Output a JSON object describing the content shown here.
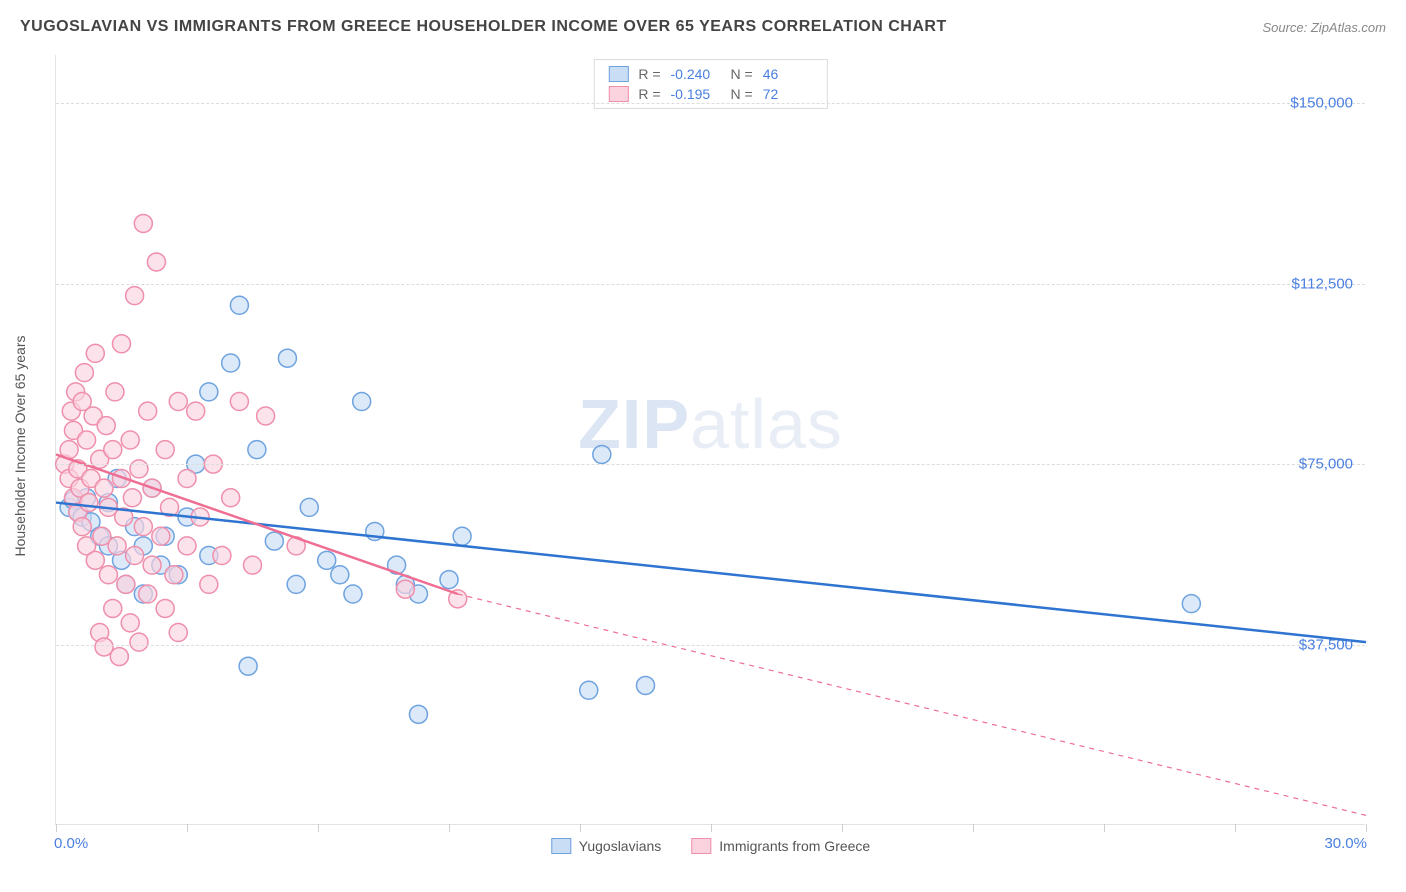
{
  "header": {
    "title": "YUGOSLAVIAN VS IMMIGRANTS FROM GREECE HOUSEHOLDER INCOME OVER 65 YEARS CORRELATION CHART",
    "source_prefix": "Source: ",
    "source_name": "ZipAtlas.com"
  },
  "watermark": {
    "zip": "ZIP",
    "atlas": "atlas"
  },
  "chart": {
    "type": "scatter",
    "y_axis_label": "Householder Income Over 65 years",
    "xlim": [
      0,
      30
    ],
    "ylim": [
      0,
      160000
    ],
    "x_min_label": "0.0%",
    "x_max_label": "30.0%",
    "x_ticks": [
      0,
      3,
      6,
      9,
      12,
      15,
      18,
      21,
      24,
      27,
      30
    ],
    "y_gridlines": [
      {
        "v": 37500,
        "label": "$37,500"
      },
      {
        "v": 75000,
        "label": "$75,000"
      },
      {
        "v": 112500,
        "label": "$112,500"
      },
      {
        "v": 150000,
        "label": "$150,000"
      }
    ],
    "background_color": "#ffffff",
    "grid_color": "#dcdcdc",
    "marker_radius": 9,
    "marker_stroke_width": 1.5,
    "trend_line_width": 2.5,
    "series": [
      {
        "key": "yugoslavians",
        "label": "Yugoslavians",
        "fill": "#c9ddf5",
        "stroke": "#6fa3e0",
        "line_color": "#2e74d0",
        "R": "-0.240",
        "N": "46",
        "trend": {
          "x1": 0,
          "y1": 67000,
          "x2": 30,
          "y2": 38000,
          "dash_after_x": 30
        },
        "points": [
          [
            0.3,
            66000
          ],
          [
            0.4,
            67500
          ],
          [
            0.5,
            65000
          ],
          [
            0.6,
            64000
          ],
          [
            0.7,
            68000
          ],
          [
            0.8,
            63000
          ],
          [
            1.0,
            60000
          ],
          [
            1.2,
            58000
          ],
          [
            1.2,
            67000
          ],
          [
            1.4,
            72000
          ],
          [
            1.5,
            55000
          ],
          [
            1.6,
            50000
          ],
          [
            1.8,
            62000
          ],
          [
            2.0,
            58000
          ],
          [
            2.0,
            48000
          ],
          [
            2.2,
            70000
          ],
          [
            2.4,
            54000
          ],
          [
            2.5,
            60000
          ],
          [
            2.8,
            52000
          ],
          [
            3.0,
            64000
          ],
          [
            3.2,
            75000
          ],
          [
            3.5,
            56000
          ],
          [
            3.5,
            90000
          ],
          [
            4.0,
            96000
          ],
          [
            4.2,
            108000
          ],
          [
            4.4,
            33000
          ],
          [
            4.6,
            78000
          ],
          [
            5.0,
            59000
          ],
          [
            5.3,
            97000
          ],
          [
            5.5,
            50000
          ],
          [
            5.8,
            66000
          ],
          [
            6.2,
            55000
          ],
          [
            6.5,
            52000
          ],
          [
            6.8,
            48000
          ],
          [
            7.0,
            88000
          ],
          [
            7.3,
            61000
          ],
          [
            7.8,
            54000
          ],
          [
            8.0,
            50000
          ],
          [
            8.3,
            23000
          ],
          [
            8.3,
            48000
          ],
          [
            9.0,
            51000
          ],
          [
            9.3,
            60000
          ],
          [
            12.2,
            28000
          ],
          [
            12.5,
            77000
          ],
          [
            13.5,
            29000
          ],
          [
            26.0,
            46000
          ]
        ]
      },
      {
        "key": "greece",
        "label": "Immigrants from Greece",
        "fill": "#fbd3de",
        "stroke": "#ef8fab",
        "line_color": "#ef6f94",
        "R": "-0.195",
        "N": "72",
        "trend": {
          "x1": 0,
          "y1": 77000,
          "x2": 9.2,
          "y2": 48000,
          "dash_after_x": 9.2,
          "dash_x2": 30,
          "dash_y2": 2000
        },
        "points": [
          [
            0.2,
            75000
          ],
          [
            0.3,
            78000
          ],
          [
            0.3,
            72000
          ],
          [
            0.35,
            86000
          ],
          [
            0.4,
            68000
          ],
          [
            0.4,
            82000
          ],
          [
            0.45,
            90000
          ],
          [
            0.5,
            65000
          ],
          [
            0.5,
            74000
          ],
          [
            0.55,
            70000
          ],
          [
            0.6,
            88000
          ],
          [
            0.6,
            62000
          ],
          [
            0.65,
            94000
          ],
          [
            0.7,
            58000
          ],
          [
            0.7,
            80000
          ],
          [
            0.75,
            67000
          ],
          [
            0.8,
            72000
          ],
          [
            0.85,
            85000
          ],
          [
            0.9,
            98000
          ],
          [
            0.9,
            55000
          ],
          [
            1.0,
            40000
          ],
          [
            1.0,
            76000
          ],
          [
            1.05,
            60000
          ],
          [
            1.1,
            37000
          ],
          [
            1.1,
            70000
          ],
          [
            1.15,
            83000
          ],
          [
            1.2,
            52000
          ],
          [
            1.2,
            66000
          ],
          [
            1.3,
            78000
          ],
          [
            1.3,
            45000
          ],
          [
            1.35,
            90000
          ],
          [
            1.4,
            58000
          ],
          [
            1.45,
            35000
          ],
          [
            1.5,
            72000
          ],
          [
            1.5,
            100000
          ],
          [
            1.55,
            64000
          ],
          [
            1.6,
            50000
          ],
          [
            1.7,
            80000
          ],
          [
            1.7,
            42000
          ],
          [
            1.75,
            68000
          ],
          [
            1.8,
            110000
          ],
          [
            1.8,
            56000
          ],
          [
            1.9,
            74000
          ],
          [
            1.9,
            38000
          ],
          [
            2.0,
            125000
          ],
          [
            2.0,
            62000
          ],
          [
            2.1,
            48000
          ],
          [
            2.1,
            86000
          ],
          [
            2.2,
            54000
          ],
          [
            2.2,
            70000
          ],
          [
            2.3,
            117000
          ],
          [
            2.4,
            60000
          ],
          [
            2.5,
            45000
          ],
          [
            2.5,
            78000
          ],
          [
            2.6,
            66000
          ],
          [
            2.7,
            52000
          ],
          [
            2.8,
            88000
          ],
          [
            2.8,
            40000
          ],
          [
            3.0,
            72000
          ],
          [
            3.0,
            58000
          ],
          [
            3.2,
            86000
          ],
          [
            3.3,
            64000
          ],
          [
            3.5,
            50000
          ],
          [
            3.6,
            75000
          ],
          [
            3.8,
            56000
          ],
          [
            4.0,
            68000
          ],
          [
            4.2,
            88000
          ],
          [
            4.5,
            54000
          ],
          [
            4.8,
            85000
          ],
          [
            5.5,
            58000
          ],
          [
            8.0,
            49000
          ],
          [
            9.2,
            47000
          ]
        ]
      }
    ]
  },
  "stats_legend": {
    "r_label": "R =",
    "n_label": "N ="
  }
}
